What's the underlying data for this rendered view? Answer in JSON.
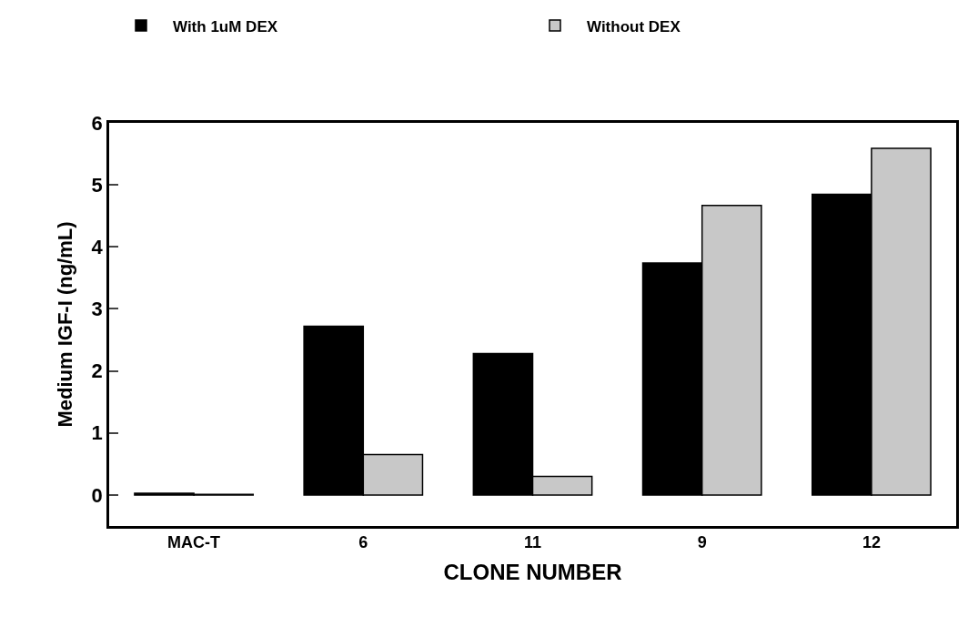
{
  "chart_data": {
    "type": "bar",
    "xlabel": "CLONE NUMBER",
    "ylabel": "Medium IGF-I (ng/mL)",
    "categories": [
      "MAC-T",
      "6",
      "11",
      "9",
      "12"
    ],
    "series": [
      {
        "name": "With 1uM DEX",
        "color": "#000000",
        "values": [
          0.03,
          2.72,
          2.28,
          3.74,
          4.85
        ]
      },
      {
        "name": "Without DEX",
        "color": "#c8c8c8",
        "values": [
          0.01,
          0.65,
          0.3,
          4.67,
          5.59
        ]
      }
    ],
    "ylim": [
      -0.5,
      6
    ],
    "yticks": [
      0,
      1,
      2,
      3,
      4,
      5,
      6
    ],
    "legend": "top left"
  }
}
